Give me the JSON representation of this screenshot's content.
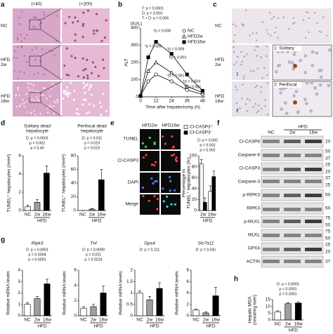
{
  "panels": {
    "a": {
      "letter": "a",
      "col_labels": [
        "(×40)",
        "(×200)"
      ],
      "row_labels": [
        [
          "NC"
        ],
        [
          "HFD",
          "2w"
        ],
        [
          "HFD",
          "16w"
        ]
      ]
    },
    "b": {
      "letter": "b"
    },
    "c": {
      "letter": "c",
      "row_labels": [
        [
          "NC"
        ],
        [
          "HFD",
          "2w"
        ],
        [
          "HFD",
          "16w"
        ]
      ],
      "insets": [
        "1: Solitary",
        "2: Perifocal"
      ],
      "inset_marks": [
        "1",
        "2"
      ]
    },
    "d": {
      "letter": "d"
    },
    "e": {
      "letter": "e",
      "col_labels": [
        "HFD2w",
        "HFD16w"
      ],
      "row_labels": [
        "TUNEL",
        "Cl-CASP3",
        "DAPI",
        "Merge"
      ]
    },
    "f": {
      "letter": "f",
      "group": "HFD",
      "columns": [
        "NC",
        "2w",
        "16w"
      ],
      "blots": [
        {
          "name": "Cl-CASP8",
          "kda": [
            20
          ]
        },
        {
          "name": "Caspase-8",
          "kda": [
            50,
            37
          ]
        },
        {
          "name": "Cl-CASP3",
          "kda": [
            25,
            20
          ]
        },
        {
          "name": "Caspase-3",
          "kda": [
            37,
            25
          ]
        },
        {
          "name": "p-RIPK3",
          "kda": [
            50
          ]
        },
        {
          "name": "RIPK3",
          "kda": [
            50
          ]
        },
        {
          "name": "p-MLKL",
          "kda": [
            75,
            50
          ]
        },
        {
          "name": "MLKL",
          "kda": [
            75,
            50
          ]
        },
        {
          "name": "GPX4",
          "kda": [
            25,
            20
          ]
        },
        {
          "name": "ACTIN",
          "kda": [
            37
          ]
        }
      ]
    },
    "g": {
      "letter": "g"
    },
    "h": {
      "letter": "h"
    }
  },
  "chart_data": [
    {
      "type": "line",
      "ylabel": "ALT",
      "yunit": "(IU/L)",
      "xlabel": "Time after hepatectomy (h)",
      "stats": [
        "T: p = 0.0001",
        "D: p = 0.003",
        "T × D: p = 0.006"
      ],
      "annotations": [
        "*p = 0.006",
        "†p = 0.008",
        "*p = 0.009",
        "†p = 0.003",
        "*p = 0.001",
        "†p = 0.004",
        "*p = 0.001"
      ],
      "x": [
        0,
        6,
        12,
        24,
        36,
        48
      ],
      "xlim": [
        0,
        50
      ],
      "xticks": [
        0,
        12,
        24,
        36,
        48
      ],
      "ylim": [
        0,
        400
      ],
      "yticks": [
        0,
        100,
        200,
        300,
        400
      ],
      "series": [
        {
          "name": "NC",
          "color": "#ffffff",
          "marker": "circle",
          "values": [
            5,
            90,
            130,
            90,
            40,
            15
          ]
        },
        {
          "name": "HFD2w",
          "color": "#ffffff",
          "marker": "triangle",
          "values": [
            5,
            150,
            200,
            140,
            60,
            25
          ]
        },
        {
          "name": "HFD16w",
          "color": "#000000",
          "marker": "square",
          "values": [
            5,
            230,
            320,
            250,
            130,
            35
          ]
        }
      ]
    },
    {
      "type": "bar",
      "title": [
        "Solitary dead",
        "hepatocyte"
      ],
      "ylabel": "TUNEL⁺ hepatocytes (/mm²)",
      "annotations": [
        "D: p = 0.0001",
        "p = 0.002",
        "p = 0.49"
      ],
      "categories": [
        "NC",
        "2w",
        "16w"
      ],
      "group": "HFD",
      "colors": [
        "#ffffff",
        "#9e9e9e",
        "#000000"
      ],
      "values": [
        0.4,
        0.9,
        4.1
      ],
      "errors": [
        0.2,
        0.3,
        0.8
      ],
      "ylim": [
        0,
        6
      ],
      "yticks": [
        0,
        2,
        4,
        6
      ]
    },
    {
      "type": "bar",
      "title": [
        "Perifocal dead",
        "hepatocyte"
      ],
      "ylabel": "TUNEL⁺ hepatocytes (/mm²)",
      "annotations": [
        "D: p = 0.011",
        "p = 0.019",
        "p = 0.019"
      ],
      "categories": [
        "NC",
        "2w",
        "16w"
      ],
      "group": "HFD",
      "colors": [
        "#ffffff",
        "#9e9e9e",
        "#000000"
      ],
      "values": [
        0,
        2,
        45
      ],
      "errors": [
        0,
        1,
        15
      ],
      "ylim": [
        0,
        80
      ],
      "yticks": [
        0,
        20,
        40,
        60,
        80
      ]
    },
    {
      "type": "grouped_bar",
      "ylabel": [
        "Percentage in",
        "TUNEL⁺ hepatocytes (%)"
      ],
      "annotations": [
        "D: p = 0.002",
        "p = 0.002",
        "p = 0.002"
      ],
      "categories": [
        "2w",
        "16w"
      ],
      "group": "HFD",
      "series": [
        {
          "name": "Cl-CASP3⁺",
          "color": "#ffffff",
          "values": [
            85,
            35
          ],
          "errors": [
            8,
            10
          ]
        },
        {
          "name": "Cl-CASP3⁻",
          "color": "#000000",
          "values": [
            15,
            62
          ],
          "errors": [
            8,
            10
          ]
        }
      ],
      "ylim": [
        0,
        100
      ],
      "yticks": [
        0,
        20,
        40,
        60,
        80,
        100
      ]
    },
    {
      "type": "bar",
      "title": [
        "Ripk3"
      ],
      "italic_title": true,
      "ylabel": "Relative mRNA levels",
      "annotations": [
        "D: p < 0.0001",
        "p = 0.0004",
        "p < 0.0001"
      ],
      "categories": [
        "NC",
        "2w",
        "16w"
      ],
      "group": "HFD",
      "colors": [
        "#ffffff",
        "#9e9e9e",
        "#000000"
      ],
      "values": [
        1,
        1.5,
        2.8
      ],
      "errors": [
        0.15,
        0.2,
        0.4
      ],
      "ylim": [
        0,
        4
      ],
      "yticks": [
        0,
        1,
        2,
        3,
        4
      ]
    },
    {
      "type": "bar",
      "title": [
        "Tnf"
      ],
      "italic_title": true,
      "ylabel": "Relative mRNA levels",
      "annotations": [
        "D: p = 0.0099",
        "p = 0.021",
        "p = 0.0224"
      ],
      "categories": [
        "NC",
        "2w",
        "16w"
      ],
      "group": "HFD",
      "colors": [
        "#ffffff",
        "#9e9e9e",
        "#000000"
      ],
      "values": [
        1,
        1.2,
        3.0
      ],
      "errors": [
        0.2,
        0.3,
        0.9
      ],
      "ylim": [
        0,
        6
      ],
      "yticks": [
        0,
        2,
        4,
        6
      ]
    },
    {
      "type": "bar",
      "title": [
        "Gpx4"
      ],
      "italic_title": true,
      "ylabel": "Relative mRNA levels",
      "annotations": [
        "D: p = 0.211"
      ],
      "categories": [
        "NC",
        "2w",
        "16w"
      ],
      "group": "HFD",
      "colors": [
        "#ffffff",
        "#9e9e9e",
        "#000000"
      ],
      "values": [
        1,
        0.7,
        1.2
      ],
      "errors": [
        0.1,
        0.15,
        0.25
      ],
      "ylim": [
        0,
        2
      ],
      "yticks": [
        0,
        0.5,
        1,
        1.5,
        2
      ]
    },
    {
      "type": "bar",
      "title": [
        "Slc7a11"
      ],
      "italic_title": true,
      "ylabel": "Relative mRNA levels",
      "annotations": [
        "D: p = 0.041"
      ],
      "categories": [
        "NC",
        "2w",
        "16w"
      ],
      "group": "HFD",
      "colors": [
        "#ffffff",
        "#9e9e9e",
        "#000000"
      ],
      "values": [
        1,
        0.5,
        3.5
      ],
      "errors": [
        0.2,
        0.2,
        1.5
      ],
      "ylim": [
        0,
        8
      ],
      "yticks": [
        0,
        2,
        4,
        6,
        8
      ]
    },
    {
      "type": "bar",
      "ylabel": [
        "Hepatic MDA",
        "(nmol/mg liver)"
      ],
      "annotations": [
        "D: p < 0.0001",
        "p < 0.0001",
        "p = 0.0001"
      ],
      "categories": [
        "NC",
        "2w",
        "16w"
      ],
      "group": "HFD",
      "colors": [
        "#ffffff",
        "#9e9e9e",
        "#000000"
      ],
      "values": [
        6,
        12,
        12.5
      ],
      "errors": [
        0.8,
        0.8,
        0.9
      ],
      "ylim": [
        0,
        15
      ],
      "yticks": [
        0,
        5,
        10,
        15
      ]
    }
  ]
}
